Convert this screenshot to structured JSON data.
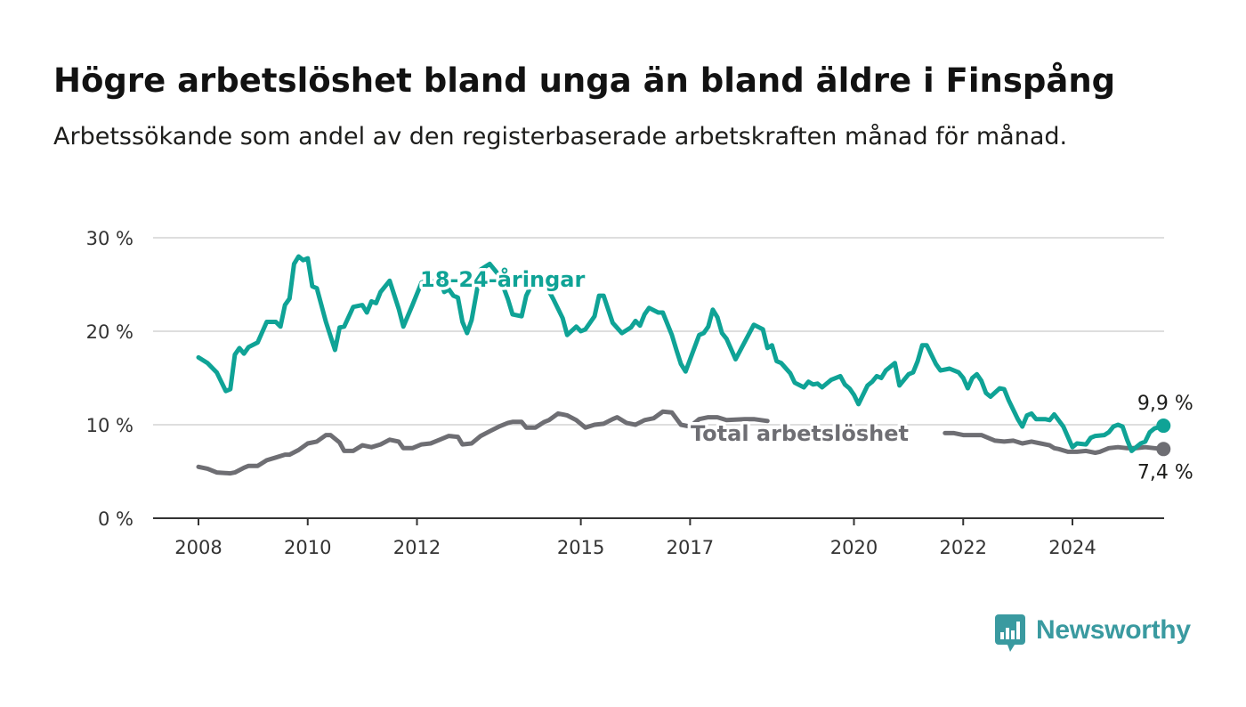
{
  "title": "Högre arbetslöshet bland unga än bland äldre i Finspång",
  "subtitle": "Arbetssökande som andel av den registerbaserade arbetskraften månad för månad.",
  "brand": {
    "name": "Newsworthy",
    "icon": "bar-chart-speech-bubble-icon",
    "color": "#3a9aa0"
  },
  "chart_data": {
    "type": "line",
    "ylim": [
      0,
      30
    ],
    "yticks": [
      0,
      10,
      20,
      30
    ],
    "ytick_labels": [
      "0 %",
      "10 %",
      "20 %",
      "30 %"
    ],
    "xlim": [
      "2008-01",
      "2025-09"
    ],
    "xticks": [
      "2008-01",
      "2010-01",
      "2012-01",
      "2015-01",
      "2017-01",
      "2020-01",
      "2022-01",
      "2024-01"
    ],
    "xtick_labels": [
      "2008",
      "2010",
      "2012",
      "2015",
      "2017",
      "2020",
      "2022",
      "2024"
    ],
    "grid": true,
    "series": [
      {
        "name": "18-24-åringar",
        "color": "#0fa396",
        "end_label": "9,9 %",
        "points": [
          [
            "2008-01",
            17.2
          ],
          [
            "2008-03",
            16.6
          ],
          [
            "2008-05",
            15.6
          ],
          [
            "2008-07",
            13.6
          ],
          [
            "2008-08",
            13.8
          ],
          [
            "2008-09",
            17.5
          ],
          [
            "2008-10",
            18.2
          ],
          [
            "2008-11",
            17.6
          ],
          [
            "2008-12",
            18.3
          ],
          [
            "2009-02",
            18.8
          ],
          [
            "2009-04",
            21.0
          ],
          [
            "2009-06",
            21.0
          ],
          [
            "2009-07",
            20.5
          ],
          [
            "2009-08",
            22.8
          ],
          [
            "2009-09",
            23.5
          ],
          [
            "2009-10",
            27.2
          ],
          [
            "2009-11",
            28.0
          ],
          [
            "2009-12",
            27.6
          ],
          [
            "2010-01",
            27.8
          ],
          [
            "2010-02",
            24.8
          ],
          [
            "2010-03",
            24.6
          ],
          [
            "2010-05",
            21.0
          ],
          [
            "2010-07",
            18.0
          ],
          [
            "2010-08",
            20.4
          ],
          [
            "2010-09",
            20.5
          ],
          [
            "2010-11",
            22.6
          ],
          [
            "2011-01",
            22.8
          ],
          [
            "2011-02",
            22.0
          ],
          [
            "2011-03",
            23.2
          ],
          [
            "2011-04",
            23.0
          ],
          [
            "2011-05",
            24.2
          ],
          [
            "2011-07",
            25.4
          ],
          [
            "2011-09",
            22.4
          ],
          [
            "2011-10",
            20.5
          ],
          [
            "2011-12",
            22.8
          ],
          [
            "2012-02",
            25.2
          ],
          [
            "2012-04",
            25.6
          ],
          [
            "2012-05",
            24.8
          ],
          [
            "2012-06",
            25.6
          ],
          [
            "2012-07",
            24.2
          ],
          [
            "2012-08",
            24.5
          ],
          [
            "2012-09",
            23.8
          ],
          [
            "2012-10",
            23.6
          ],
          [
            "2012-11",
            21.0
          ],
          [
            "2012-12",
            19.8
          ],
          [
            "2013-01",
            21.2
          ],
          [
            "2013-03",
            26.6
          ],
          [
            "2013-05",
            27.2
          ],
          [
            "2013-07",
            26.0
          ],
          [
            "2013-09",
            23.4
          ],
          [
            "2013-10",
            21.8
          ],
          [
            "2013-12",
            21.6
          ],
          [
            "2014-01",
            23.8
          ],
          [
            "2014-03",
            25.8
          ],
          [
            "2014-05",
            25.2
          ],
          [
            "2014-07",
            23.4
          ],
          [
            "2014-09",
            21.4
          ],
          [
            "2014-10",
            19.6
          ],
          [
            "2014-12",
            20.5
          ],
          [
            "2015-01",
            20.0
          ],
          [
            "2015-02",
            20.2
          ],
          [
            "2015-04",
            21.6
          ],
          [
            "2015-05",
            23.8
          ],
          [
            "2015-06",
            23.8
          ],
          [
            "2015-08",
            20.9
          ],
          [
            "2015-10",
            19.8
          ],
          [
            "2015-12",
            20.4
          ],
          [
            "2016-01",
            21.1
          ],
          [
            "2016-02",
            20.6
          ],
          [
            "2016-03",
            21.8
          ],
          [
            "2016-04",
            22.5
          ],
          [
            "2016-06",
            22.0
          ],
          [
            "2016-07",
            22.0
          ],
          [
            "2016-09",
            19.6
          ],
          [
            "2016-10",
            18.0
          ],
          [
            "2016-11",
            16.5
          ],
          [
            "2016-12",
            15.7
          ],
          [
            "2017-03",
            19.6
          ],
          [
            "2017-04",
            19.8
          ],
          [
            "2017-05",
            20.5
          ],
          [
            "2017-06",
            22.3
          ],
          [
            "2017-07",
            21.5
          ],
          [
            "2017-08",
            19.8
          ],
          [
            "2017-09",
            19.2
          ],
          [
            "2017-11",
            17.0
          ],
          [
            "2018-03",
            20.7
          ],
          [
            "2018-05",
            20.2
          ],
          [
            "2018-06",
            18.2
          ],
          [
            "2018-07",
            18.5
          ],
          [
            "2018-08",
            16.8
          ],
          [
            "2018-09",
            16.6
          ],
          [
            "2018-11",
            15.5
          ],
          [
            "2018-12",
            14.5
          ],
          [
            "2019-02",
            14.0
          ],
          [
            "2019-03",
            14.6
          ],
          [
            "2019-04",
            14.3
          ],
          [
            "2019-05",
            14.4
          ],
          [
            "2019-06",
            14.0
          ],
          [
            "2019-08",
            14.8
          ],
          [
            "2019-10",
            15.2
          ],
          [
            "2019-11",
            14.3
          ],
          [
            "2019-12",
            13.9
          ],
          [
            "2020-01",
            13.2
          ],
          [
            "2020-02",
            12.2
          ],
          [
            "2020-03",
            13.2
          ],
          [
            "2020-04",
            14.2
          ],
          [
            "2020-05",
            14.6
          ],
          [
            "2020-06",
            15.2
          ],
          [
            "2020-07",
            15.0
          ],
          [
            "2020-08",
            15.8
          ],
          [
            "2020-10",
            16.6
          ],
          [
            "2020-11",
            14.2
          ],
          [
            "2021-01",
            15.4
          ],
          [
            "2021-02",
            15.6
          ],
          [
            "2021-03",
            16.8
          ],
          [
            "2021-04",
            18.5
          ],
          [
            "2021-05",
            18.5
          ],
          [
            "2021-07",
            16.5
          ],
          [
            "2021-08",
            15.8
          ],
          [
            "2021-10",
            16.0
          ],
          [
            "2021-12",
            15.6
          ],
          [
            "2022-01",
            15.0
          ],
          [
            "2022-02",
            13.9
          ],
          [
            "2022-03",
            15.0
          ],
          [
            "2022-04",
            15.4
          ],
          [
            "2022-05",
            14.7
          ],
          [
            "2022-06",
            13.4
          ],
          [
            "2022-07",
            13.0
          ],
          [
            "2022-09",
            13.9
          ],
          [
            "2022-10",
            13.8
          ],
          [
            "2022-11",
            12.6
          ],
          [
            "2023-01",
            10.6
          ],
          [
            "2023-02",
            9.8
          ],
          [
            "2023-03",
            11.0
          ],
          [
            "2023-04",
            11.2
          ],
          [
            "2023-05",
            10.6
          ],
          [
            "2023-06",
            10.6
          ],
          [
            "2023-07",
            10.6
          ],
          [
            "2023-08",
            10.5
          ],
          [
            "2023-09",
            11.1
          ],
          [
            "2023-11",
            9.8
          ],
          [
            "2024-01",
            7.6
          ],
          [
            "2024-02",
            8.0
          ],
          [
            "2024-04",
            7.9
          ],
          [
            "2024-05",
            8.6
          ],
          [
            "2024-06",
            8.8
          ],
          [
            "2024-08",
            8.9
          ],
          [
            "2024-09",
            9.2
          ],
          [
            "2024-10",
            9.8
          ],
          [
            "2024-11",
            10.0
          ],
          [
            "2024-12",
            9.8
          ],
          [
            "2025-01",
            8.4
          ],
          [
            "2025-02",
            7.2
          ],
          [
            "2025-04",
            8.0
          ],
          [
            "2025-05",
            8.2
          ],
          [
            "2025-06",
            9.2
          ],
          [
            "2025-07",
            9.6
          ],
          [
            "2025-09",
            9.9
          ]
        ]
      },
      {
        "name": "Total arbetslöshet",
        "color": "#6e6e73",
        "end_label": "7,4 %",
        "points": [
          [
            "2008-01",
            5.5
          ],
          [
            "2008-03",
            5.3
          ],
          [
            "2008-05",
            4.9
          ],
          [
            "2008-08",
            4.8
          ],
          [
            "2008-09",
            4.9
          ],
          [
            "2008-11",
            5.4
          ],
          [
            "2008-12",
            5.6
          ],
          [
            "2009-02",
            5.6
          ],
          [
            "2009-04",
            6.2
          ],
          [
            "2009-06",
            6.5
          ],
          [
            "2009-08",
            6.8
          ],
          [
            "2009-09",
            6.8
          ],
          [
            "2009-11",
            7.3
          ],
          [
            "2010-01",
            8.0
          ],
          [
            "2010-03",
            8.2
          ],
          [
            "2010-05",
            8.9
          ],
          [
            "2010-06",
            8.9
          ],
          [
            "2010-08",
            8.1
          ],
          [
            "2010-09",
            7.2
          ],
          [
            "2010-11",
            7.2
          ],
          [
            "2011-01",
            7.8
          ],
          [
            "2011-03",
            7.6
          ],
          [
            "2011-05",
            7.9
          ],
          [
            "2011-07",
            8.4
          ],
          [
            "2011-09",
            8.2
          ],
          [
            "2011-10",
            7.5
          ],
          [
            "2011-12",
            7.5
          ],
          [
            "2012-02",
            7.9
          ],
          [
            "2012-04",
            8.0
          ],
          [
            "2012-06",
            8.4
          ],
          [
            "2012-08",
            8.8
          ],
          [
            "2012-10",
            8.7
          ],
          [
            "2012-11",
            7.9
          ],
          [
            "2013-01",
            8.0
          ],
          [
            "2013-03",
            8.8
          ],
          [
            "2013-05",
            9.3
          ],
          [
            "2013-07",
            9.8
          ],
          [
            "2013-09",
            10.2
          ],
          [
            "2013-10",
            10.3
          ],
          [
            "2013-12",
            10.3
          ],
          [
            "2014-01",
            9.7
          ],
          [
            "2014-03",
            9.7
          ],
          [
            "2014-05",
            10.3
          ],
          [
            "2014-06",
            10.5
          ],
          [
            "2014-08",
            11.2
          ],
          [
            "2014-10",
            11.0
          ],
          [
            "2014-12",
            10.5
          ],
          [
            "2015-02",
            9.7
          ],
          [
            "2015-04",
            10.0
          ],
          [
            "2015-06",
            10.1
          ],
          [
            "2015-08",
            10.6
          ],
          [
            "2015-09",
            10.8
          ],
          [
            "2015-11",
            10.2
          ],
          [
            "2016-01",
            10.0
          ],
          [
            "2016-03",
            10.5
          ],
          [
            "2016-05",
            10.7
          ],
          [
            "2016-07",
            11.4
          ],
          [
            "2016-09",
            11.3
          ],
          [
            "2016-11",
            10.0
          ],
          [
            "2017-01",
            9.8
          ],
          [
            "2017-03",
            10.6
          ],
          [
            "2017-05",
            10.8
          ],
          [
            "2017-07",
            10.8
          ],
          [
            "2017-09",
            10.5
          ],
          [
            "2018-01",
            10.6
          ],
          [
            "2018-03",
            10.6
          ],
          [
            "2018-06",
            10.4
          ]
        ],
        "points_tail": [
          [
            "2021-09",
            9.1
          ],
          [
            "2021-11",
            9.1
          ],
          [
            "2022-01",
            8.9
          ],
          [
            "2022-05",
            8.9
          ],
          [
            "2022-07",
            8.5
          ],
          [
            "2022-08",
            8.3
          ],
          [
            "2022-10",
            8.2
          ],
          [
            "2022-12",
            8.3
          ],
          [
            "2023-02",
            8.0
          ],
          [
            "2023-04",
            8.2
          ],
          [
            "2023-06",
            8.0
          ],
          [
            "2023-08",
            7.8
          ],
          [
            "2023-09",
            7.5
          ],
          [
            "2023-10",
            7.4
          ],
          [
            "2023-12",
            7.1
          ],
          [
            "2024-02",
            7.1
          ],
          [
            "2024-04",
            7.2
          ],
          [
            "2024-06",
            7.0
          ],
          [
            "2024-07",
            7.1
          ],
          [
            "2024-09",
            7.5
          ],
          [
            "2024-11",
            7.6
          ],
          [
            "2025-01",
            7.5
          ],
          [
            "2025-03",
            7.5
          ],
          [
            "2025-05",
            7.6
          ],
          [
            "2025-07",
            7.5
          ],
          [
            "2025-09",
            7.4
          ]
        ]
      }
    ]
  }
}
